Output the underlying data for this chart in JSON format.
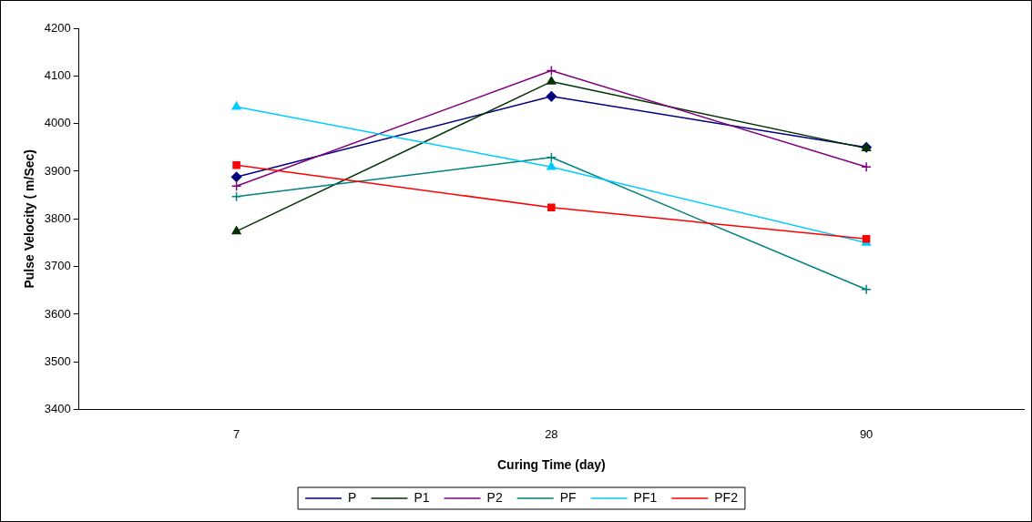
{
  "chart_data": {
    "type": "line",
    "xlabel": "Curing Time (day)",
    "ylabel": "Pulse Velocity ( m/Sec)",
    "categories": [
      "7",
      "28",
      "90"
    ],
    "ylim": [
      3400,
      4200
    ],
    "yticks": [
      3400,
      3500,
      3600,
      3700,
      3800,
      3900,
      4000,
      4100,
      4200
    ],
    "grid": false,
    "legend": "bottom",
    "line_style": "solid",
    "series": [
      {
        "name": "P",
        "color": "#000080",
        "marker": "diamond",
        "values": [
          3888,
          4057,
          3950
        ]
      },
      {
        "name": "P1",
        "color": "#003300",
        "marker": "triangle",
        "values": [
          3774,
          4088,
          3948
        ]
      },
      {
        "name": "P2",
        "color": "#800080",
        "marker": "cross",
        "values": [
          3869,
          4111,
          3909
        ]
      },
      {
        "name": "PF",
        "color": "#008080",
        "marker": "cross",
        "values": [
          3847,
          3929,
          3652
        ]
      },
      {
        "name": "PF1",
        "color": "#00ccff",
        "marker": "triangle",
        "values": [
          4035,
          3909,
          3750
        ]
      },
      {
        "name": "PF2",
        "color": "#ff0000",
        "marker": "square",
        "values": [
          3913,
          3824,
          3758
        ]
      }
    ]
  }
}
